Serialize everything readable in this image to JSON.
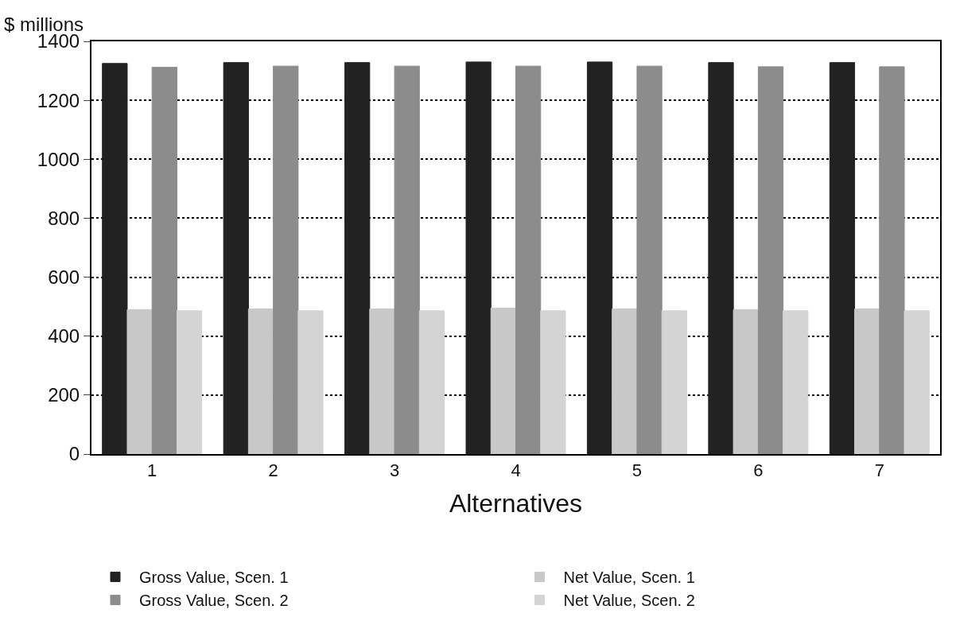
{
  "chart_data": {
    "type": "bar",
    "ylabel": "$ millions",
    "xlabel": "Alternatives",
    "categories": [
      "1",
      "2",
      "3",
      "4",
      "5",
      "6",
      "7"
    ],
    "series": [
      {
        "name": "Gross Value, Scen. 1",
        "color": "#222222",
        "values": [
          1325,
          1328,
          1328,
          1330,
          1330,
          1328,
          1328
        ]
      },
      {
        "name": "Net Value, Scen. 1",
        "color": "#c8c8c8",
        "values": [
          490,
          492,
          492,
          495,
          492,
          490,
          492
        ]
      },
      {
        "name": "Gross Value, Scen. 2",
        "color": "#8c8c8c",
        "values": [
          1312,
          1316,
          1316,
          1316,
          1316,
          1314,
          1314
        ]
      },
      {
        "name": "Net Value, Scen. 2",
        "color": "#d4d4d4",
        "values": [
          486,
          486,
          486,
          486,
          486,
          486,
          486
        ]
      }
    ],
    "ylim": [
      0,
      1400
    ],
    "yticks": [
      0,
      200,
      400,
      600,
      800,
      1000,
      1200,
      1400
    ],
    "grid": "y",
    "legend": "bottom"
  }
}
